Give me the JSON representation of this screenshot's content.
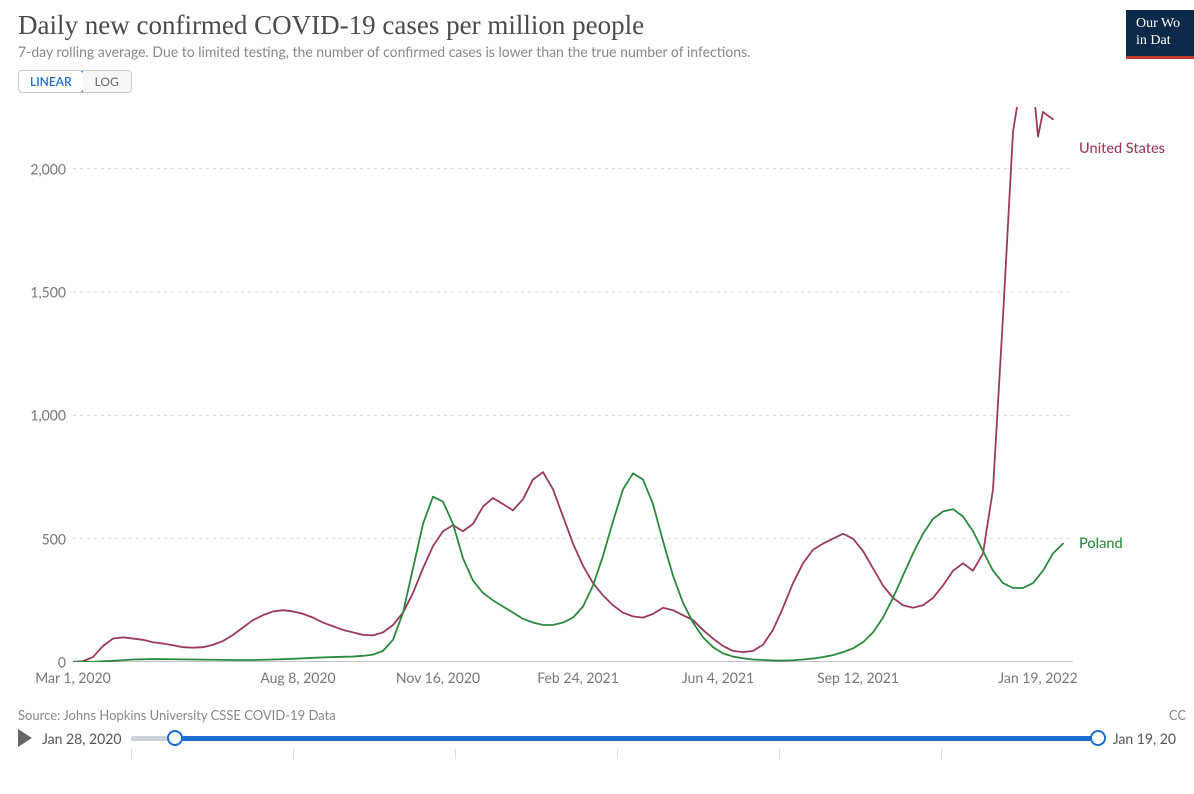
{
  "header": {
    "title": "Daily new confirmed COVID-19 cases per million people",
    "subtitle": "7-day rolling average. Due to limited testing, the number of confirmed cases is lower than the true number of infections."
  },
  "logo": {
    "line1": "Our Wo",
    "line2": "in Dat"
  },
  "scale_toggle": {
    "linear_label": "LINEAR",
    "log_label": "LOG",
    "active": "linear"
  },
  "chart": {
    "type": "line",
    "background_color": "#ffffff",
    "grid_color": "#dcdcdc",
    "axis_color": "#888888",
    "text_color": "#777777",
    "tick_fontsize": 14,
    "y": {
      "min": 0,
      "max": 2250,
      "ticks": [
        0,
        500,
        1000,
        1500,
        2000
      ],
      "tick_labels": [
        "0",
        "500",
        "1,000",
        "1,500",
        "2,000"
      ]
    },
    "x": {
      "min": 0,
      "max": 100,
      "ticks": [
        0,
        22.5,
        36.5,
        50.5,
        64.5,
        78.5,
        96.5
      ],
      "tick_labels": [
        "Mar 1, 2020",
        "Aug 8, 2020",
        "Nov 16, 2020",
        "Feb 24, 2021",
        "Jun 4, 2021",
        "Sep 12, 2021",
        "Jan 19, 2022"
      ]
    },
    "series": [
      {
        "name": "United States",
        "label": "United States",
        "color": "#9c3b56",
        "line_width": 1.8,
        "label_y": 2080,
        "data": [
          [
            0,
            1
          ],
          [
            1,
            3
          ],
          [
            2,
            20
          ],
          [
            3,
            65
          ],
          [
            4,
            95
          ],
          [
            5,
            100
          ],
          [
            6,
            95
          ],
          [
            7,
            90
          ],
          [
            8,
            80
          ],
          [
            9,
            75
          ],
          [
            10,
            68
          ],
          [
            11,
            60
          ],
          [
            12,
            58
          ],
          [
            13,
            60
          ],
          [
            14,
            70
          ],
          [
            15,
            85
          ],
          [
            16,
            110
          ],
          [
            17,
            140
          ],
          [
            18,
            170
          ],
          [
            19,
            190
          ],
          [
            20,
            205
          ],
          [
            21,
            210
          ],
          [
            22,
            205
          ],
          [
            23,
            195
          ],
          [
            24,
            180
          ],
          [
            25,
            160
          ],
          [
            26,
            145
          ],
          [
            27,
            130
          ],
          [
            28,
            120
          ],
          [
            29,
            110
          ],
          [
            30,
            108
          ],
          [
            31,
            120
          ],
          [
            32,
            150
          ],
          [
            33,
            200
          ],
          [
            34,
            280
          ],
          [
            35,
            380
          ],
          [
            36,
            470
          ],
          [
            37,
            530
          ],
          [
            38,
            555
          ],
          [
            39,
            530
          ],
          [
            40,
            560
          ],
          [
            41,
            630
          ],
          [
            42,
            665
          ],
          [
            43,
            640
          ],
          [
            44,
            615
          ],
          [
            45,
            660
          ],
          [
            46,
            740
          ],
          [
            47,
            770
          ],
          [
            48,
            700
          ],
          [
            49,
            590
          ],
          [
            50,
            480
          ],
          [
            51,
            390
          ],
          [
            52,
            320
          ],
          [
            53,
            270
          ],
          [
            54,
            230
          ],
          [
            55,
            200
          ],
          [
            56,
            185
          ],
          [
            57,
            180
          ],
          [
            58,
            195
          ],
          [
            59,
            220
          ],
          [
            60,
            210
          ],
          [
            61,
            190
          ],
          [
            62,
            170
          ],
          [
            63,
            130
          ],
          [
            64,
            95
          ],
          [
            65,
            65
          ],
          [
            66,
            45
          ],
          [
            67,
            40
          ],
          [
            68,
            45
          ],
          [
            69,
            70
          ],
          [
            70,
            130
          ],
          [
            71,
            220
          ],
          [
            72,
            320
          ],
          [
            73,
            400
          ],
          [
            74,
            455
          ],
          [
            75,
            480
          ],
          [
            76,
            500
          ],
          [
            77,
            520
          ],
          [
            78,
            500
          ],
          [
            79,
            450
          ],
          [
            80,
            380
          ],
          [
            81,
            310
          ],
          [
            82,
            260
          ],
          [
            83,
            230
          ],
          [
            84,
            220
          ],
          [
            85,
            230
          ],
          [
            86,
            260
          ],
          [
            87,
            310
          ],
          [
            88,
            370
          ],
          [
            89,
            400
          ],
          [
            90,
            370
          ],
          [
            91,
            440
          ],
          [
            92,
            700
          ],
          [
            93,
            1400
          ],
          [
            94,
            2150
          ],
          [
            95,
            2400
          ],
          [
            95.5,
            2300
          ],
          [
            96,
            2350
          ],
          [
            96.5,
            2130
          ],
          [
            97,
            2230
          ],
          [
            98,
            2200
          ]
        ]
      },
      {
        "name": "Poland",
        "label": "Poland",
        "color": "#2b8a3e",
        "line_width": 1.8,
        "label_y": 480,
        "data": [
          [
            0,
            0
          ],
          [
            2,
            1
          ],
          [
            4,
            5
          ],
          [
            6,
            10
          ],
          [
            8,
            12
          ],
          [
            10,
            11
          ],
          [
            12,
            10
          ],
          [
            14,
            9
          ],
          [
            16,
            8
          ],
          [
            18,
            8
          ],
          [
            20,
            10
          ],
          [
            22,
            13
          ],
          [
            24,
            17
          ],
          [
            26,
            20
          ],
          [
            28,
            22
          ],
          [
            29,
            25
          ],
          [
            30,
            30
          ],
          [
            31,
            45
          ],
          [
            32,
            90
          ],
          [
            33,
            200
          ],
          [
            34,
            380
          ],
          [
            35,
            560
          ],
          [
            36,
            670
          ],
          [
            37,
            650
          ],
          [
            38,
            560
          ],
          [
            39,
            420
          ],
          [
            40,
            330
          ],
          [
            41,
            280
          ],
          [
            42,
            250
          ],
          [
            43,
            225
          ],
          [
            44,
            200
          ],
          [
            45,
            175
          ],
          [
            46,
            160
          ],
          [
            47,
            150
          ],
          [
            48,
            150
          ],
          [
            49,
            160
          ],
          [
            50,
            180
          ],
          [
            51,
            225
          ],
          [
            52,
            310
          ],
          [
            53,
            430
          ],
          [
            54,
            570
          ],
          [
            55,
            700
          ],
          [
            56,
            765
          ],
          [
            57,
            740
          ],
          [
            58,
            640
          ],
          [
            59,
            490
          ],
          [
            60,
            350
          ],
          [
            61,
            240
          ],
          [
            62,
            160
          ],
          [
            63,
            100
          ],
          [
            64,
            60
          ],
          [
            65,
            35
          ],
          [
            66,
            22
          ],
          [
            67,
            15
          ],
          [
            68,
            10
          ],
          [
            69,
            8
          ],
          [
            70,
            6
          ],
          [
            71,
            6
          ],
          [
            72,
            7
          ],
          [
            73,
            10
          ],
          [
            74,
            14
          ],
          [
            75,
            20
          ],
          [
            76,
            28
          ],
          [
            77,
            40
          ],
          [
            78,
            55
          ],
          [
            79,
            80
          ],
          [
            80,
            120
          ],
          [
            81,
            180
          ],
          [
            82,
            260
          ],
          [
            83,
            350
          ],
          [
            84,
            440
          ],
          [
            85,
            520
          ],
          [
            86,
            580
          ],
          [
            87,
            610
          ],
          [
            88,
            620
          ],
          [
            89,
            590
          ],
          [
            90,
            530
          ],
          [
            91,
            450
          ],
          [
            92,
            370
          ],
          [
            93,
            320
          ],
          [
            94,
            300
          ],
          [
            95,
            300
          ],
          [
            96,
            320
          ],
          [
            97,
            370
          ],
          [
            98,
            440
          ],
          [
            99,
            480
          ]
        ]
      }
    ]
  },
  "footer": {
    "source": "Source: Johns Hopkins University CSSE COVID-19 Data",
    "cc": "CC",
    "timeline": {
      "start_label": "Jan 28, 2020",
      "end_label": "Jan 19, 20",
      "handle_start_pct": 4.5,
      "handle_end_pct": 99.5,
      "rail_color": "#1d6dd1"
    }
  }
}
